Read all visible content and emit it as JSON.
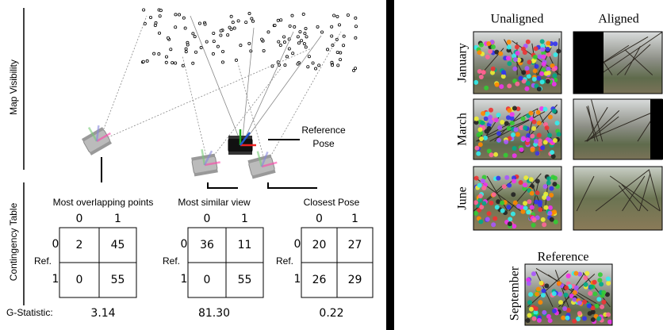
{
  "left_panel": {
    "axis_labels": [
      "Map Visibility",
      "Contingency Table"
    ],
    "reference_label": [
      "Reference",
      "Pose"
    ],
    "g_statistic_label": "G-Statistic:",
    "tables": [
      {
        "title": "Most overlapping points",
        "col_headers": [
          "0",
          "1"
        ],
        "row_headers": [
          "0",
          "1"
        ],
        "row_axis": "Ref.",
        "cells": [
          [
            2,
            45
          ],
          [
            0,
            55
          ]
        ],
        "g_statistic": "3.14"
      },
      {
        "title": "Most similar view",
        "col_headers": [
          "0",
          "1"
        ],
        "row_headers": [
          "0",
          "1"
        ],
        "row_axis": "Ref.",
        "cells": [
          [
            36,
            11
          ],
          [
            0,
            55
          ]
        ],
        "g_statistic": "81.30"
      },
      {
        "title": "Closest Pose",
        "col_headers": [
          "0",
          "1"
        ],
        "row_headers": [
          "0",
          "1"
        ],
        "row_axis": "Ref.",
        "cells": [
          [
            20,
            27
          ],
          [
            26,
            29
          ]
        ],
        "g_statistic": "0.22"
      }
    ]
  },
  "right_panel": {
    "column_headers": [
      "Unaligned",
      "Aligned"
    ],
    "rows": [
      "January",
      "March",
      "June"
    ],
    "reference": {
      "title": "Reference",
      "month": "September"
    }
  }
}
